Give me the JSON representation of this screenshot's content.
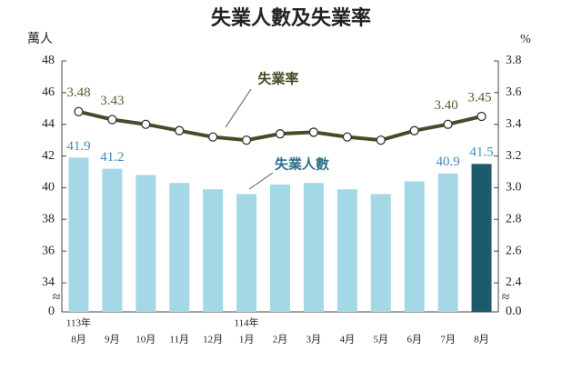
{
  "chart_data": {
    "type": "bar_line",
    "title": "失業人數及失業率",
    "ylabel": "萬人",
    "y2label": "%",
    "categories": [
      [
        "113年",
        "8月"
      ],
      "9月",
      "10月",
      "11月",
      "12月",
      [
        "114年",
        "1月"
      ],
      "2月",
      "3月",
      "4月",
      "5月",
      "6月",
      "7月",
      "8月"
    ],
    "ylim": [
      0,
      48
    ],
    "y_axis_break": [
      0,
      34
    ],
    "yticks": [
      0,
      34,
      36,
      38,
      40,
      42,
      44,
      46,
      48
    ],
    "y2lim": [
      0,
      3.8
    ],
    "y2_axis_break": [
      0,
      2.4
    ],
    "y2ticks": [
      {
        "value": 0,
        "label": "0.0"
      },
      2.4,
      2.6,
      2.8,
      {
        "value": 3,
        "label": "3.0"
      },
      3.2,
      3.4,
      3.6,
      3.8
    ],
    "series": [
      {
        "name": "失業人數",
        "kind": "bar",
        "axis": "y",
        "colors": [
          "#a5d8e6",
          "#a5d8e6",
          "#a5d8e6",
          "#a5d8e6",
          "#a5d8e6",
          "#a5d8e6",
          "#a5d8e6",
          "#a5d8e6",
          "#a5d8e6",
          "#a5d8e6",
          "#a5d8e6",
          "#a5d8e6",
          "#1d5a6b"
        ],
        "label_color": "#3f8db5",
        "values": [
          41.9,
          41.2,
          40.8,
          40.3,
          39.9,
          39.6,
          40.2,
          40.3,
          39.9,
          39.6,
          40.4,
          40.9,
          41.5
        ],
        "value_labels": [
          "41.9",
          "41.2",
          null,
          null,
          null,
          null,
          null,
          null,
          null,
          null,
          null,
          "40.9",
          "41.5"
        ]
      },
      {
        "name": "失業率",
        "kind": "line",
        "axis": "y2",
        "color": "#4b4a28",
        "label_color": "#5a5a33",
        "values": [
          3.48,
          3.43,
          3.4,
          3.36,
          3.32,
          3.3,
          3.34,
          3.35,
          3.32,
          3.3,
          3.36,
          3.4,
          3.45
        ],
        "value_labels": [
          "3.48",
          "3.43",
          null,
          null,
          null,
          null,
          null,
          null,
          null,
          null,
          null,
          "3.40",
          "3.45"
        ]
      }
    ]
  }
}
